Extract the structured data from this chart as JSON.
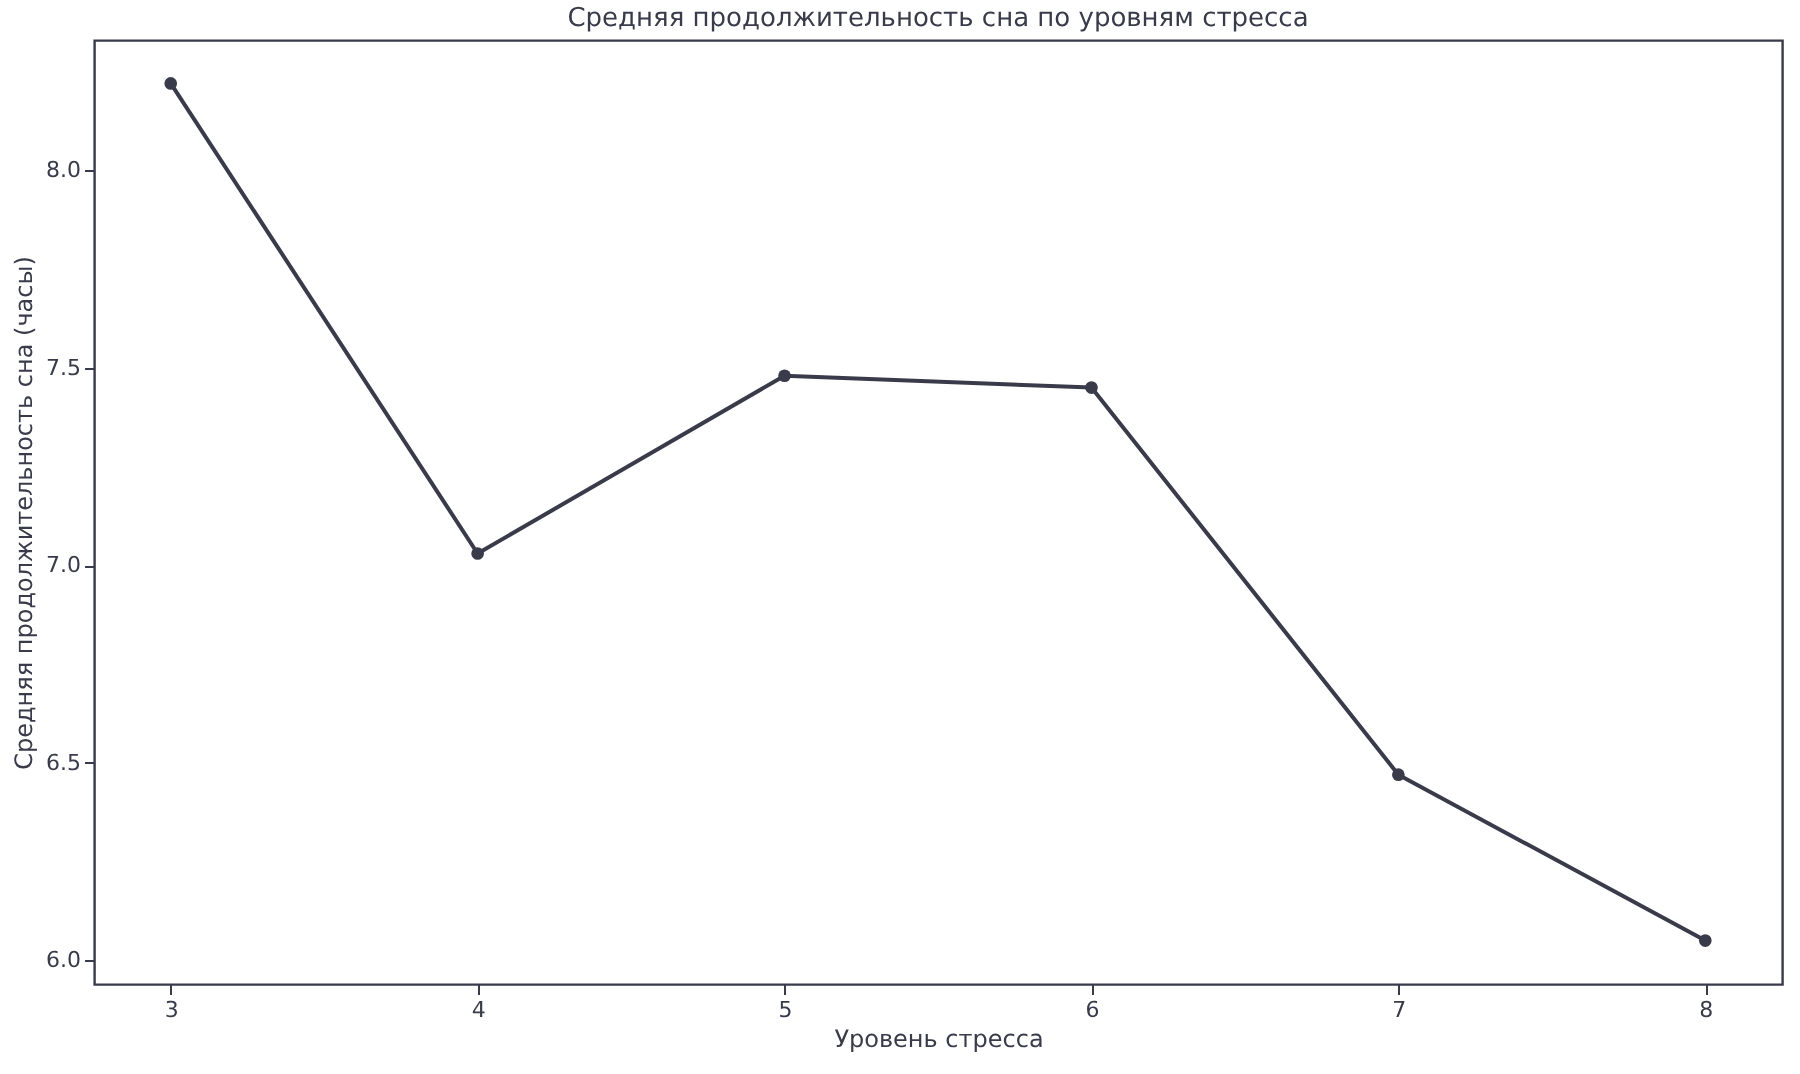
{
  "chart_data": {
    "type": "line",
    "title": "Средняя продолжительность сна по уровням стресса",
    "xlabel": "Уровень стресса",
    "ylabel": "Средняя продолжительность сна (часы)",
    "x": [
      3,
      4,
      5,
      6,
      7,
      8
    ],
    "series": [
      {
        "color": "#3a3b4a",
        "values": [
          8.22,
          7.03,
          7.48,
          7.45,
          6.47,
          6.05
        ]
      }
    ],
    "xlim": [
      2.75,
      8.25
    ],
    "xticks": [
      3,
      4,
      5,
      6,
      7,
      8
    ],
    "ylim": [
      5.94,
      8.33
    ],
    "yticks": [
      {
        "value": 6,
        "label": "6.0"
      },
      {
        "value": 6.5,
        "label": "6.5"
      },
      {
        "value": 7,
        "label": "7.0"
      },
      {
        "value": 7.5,
        "label": "7.5"
      },
      {
        "value": 8,
        "label": "8.0"
      }
    ],
    "grid": false,
    "marker": "circle",
    "line_style": "solid"
  }
}
